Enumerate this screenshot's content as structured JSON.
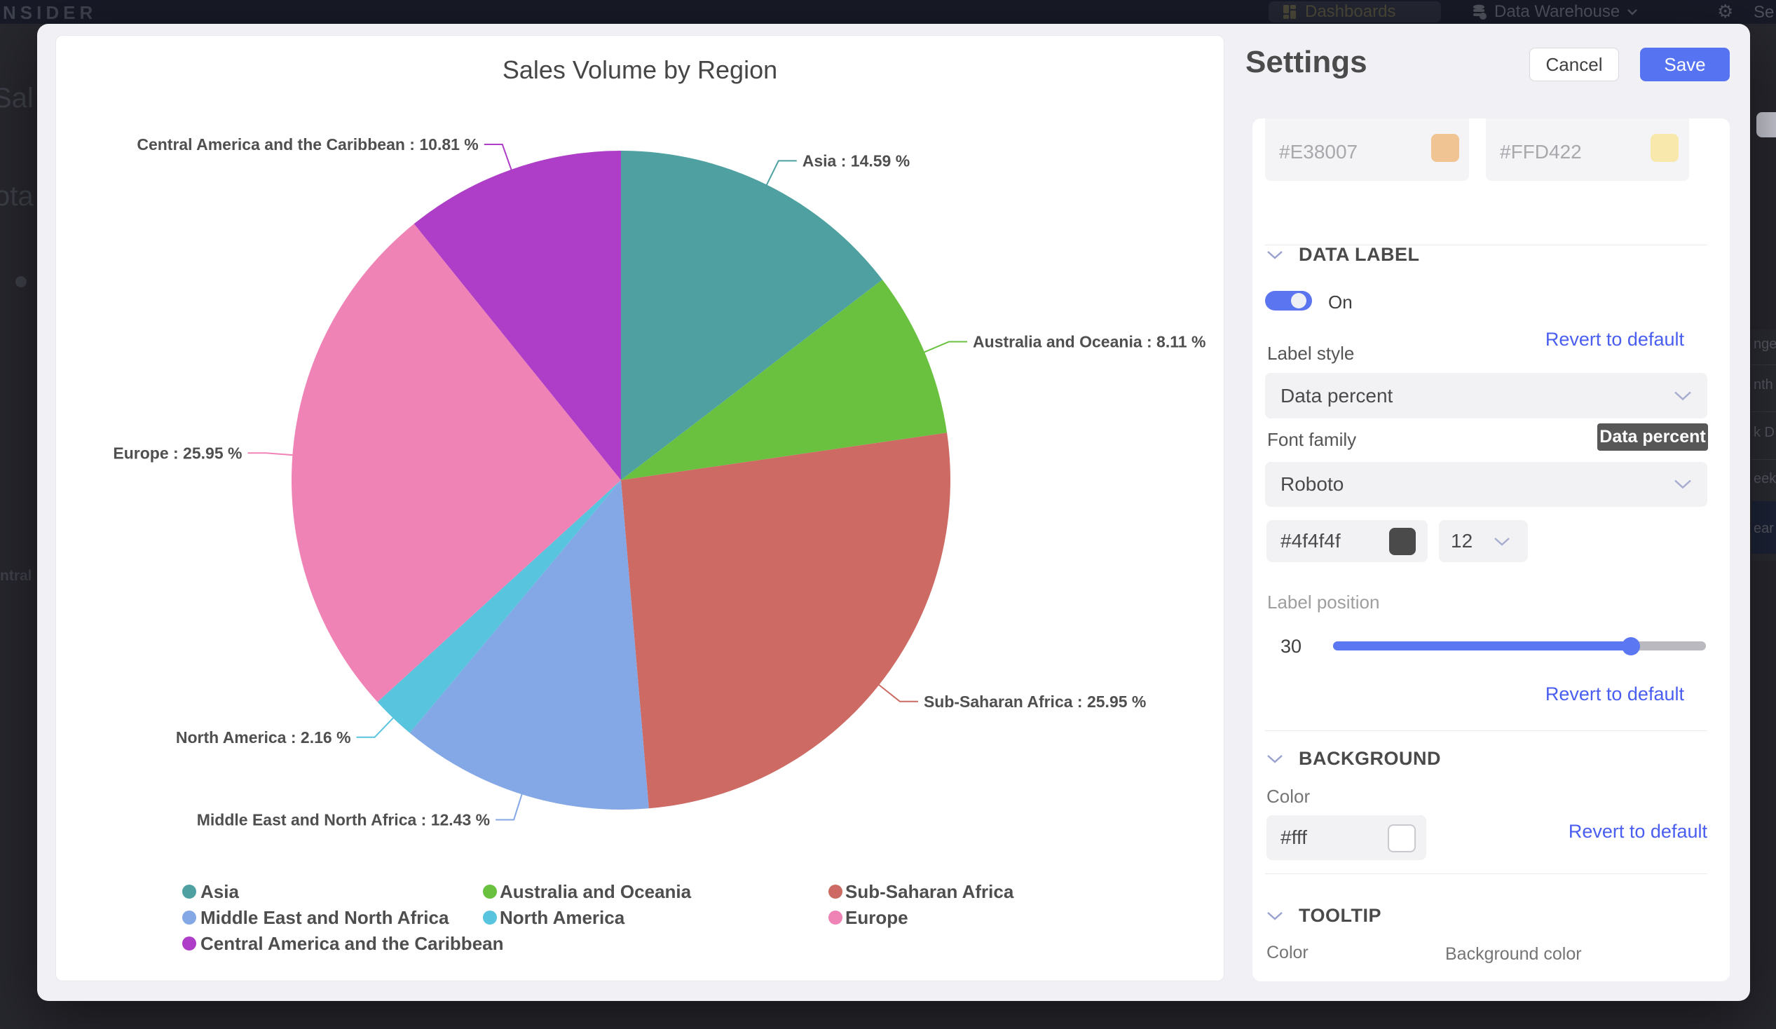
{
  "background": {
    "logo": "NSIDER",
    "nav": {
      "dashboards": "Dashboards",
      "data_warehouse": "Data Warehouse",
      "settings_partial": "Se"
    },
    "left_fragments": {
      "f1": "Sal",
      "f2": "ota",
      "f3": "ntral"
    },
    "right_menu": {
      "i0": "nge",
      "i1": "nth",
      "i2": "k D",
      "i3": "eek",
      "i4": "ear"
    }
  },
  "chart_data": {
    "type": "pie",
    "title": "Sales Volume by Region",
    "label_format": "{name} : {percent} %",
    "legend_position": "bottom",
    "series": [
      {
        "name": "Asia",
        "percent": "14.59",
        "value": 14.59,
        "color": "#4FA1A1"
      },
      {
        "name": "Australia and Oceania",
        "percent": "8.11",
        "value": 8.11,
        "color": "#69C13F"
      },
      {
        "name": "Sub-Saharan Africa",
        "percent": "25.95",
        "value": 25.95,
        "color": "#CC6A63"
      },
      {
        "name": "Middle East and North Africa",
        "percent": "12.43",
        "value": 12.43,
        "color": "#84A7E5"
      },
      {
        "name": "North America",
        "percent": "2.16",
        "value": 2.16,
        "color": "#58C4DD"
      },
      {
        "name": "Europe",
        "percent": "25.95",
        "value": 25.95,
        "color": "#F083B6"
      },
      {
        "name": "Central America and the Caribbean",
        "percent": "10.81",
        "value": 10.81,
        "color": "#AE3EC7"
      }
    ]
  },
  "settings": {
    "title": "Settings",
    "cancel_label": "Cancel",
    "save_label": "Save",
    "revert_label": "Revert to default",
    "color_inputs": [
      {
        "value": "#E38007",
        "swatch": "#F0C493"
      },
      {
        "value": "#FFD422",
        "swatch": "#F8E8AC"
      }
    ],
    "data_label": {
      "header": "DATA LABEL",
      "toggle_state": "On",
      "label_style_label": "Label style",
      "label_style_value": "Data percent",
      "font_family_label": "Font family",
      "font_family_value": "Roboto",
      "tooltip_text": "Data percent",
      "font_color_value": "#4f4f4f",
      "font_color_swatch": "#4a4a4a",
      "font_size_value": "12",
      "label_position_label": "Label position",
      "label_position_value": "30"
    },
    "background_section": {
      "header": "BACKGROUND",
      "color_label": "Color",
      "color_value": "#fff",
      "color_swatch": "#ffffff"
    },
    "tooltip_section": {
      "header": "TOOLTIP",
      "color_label": "Color",
      "bg_color_label": "Background color"
    },
    "accent_color": "#5673f1",
    "link_color": "#4a5ef0",
    "toggle_color": "#5b74f0"
  }
}
